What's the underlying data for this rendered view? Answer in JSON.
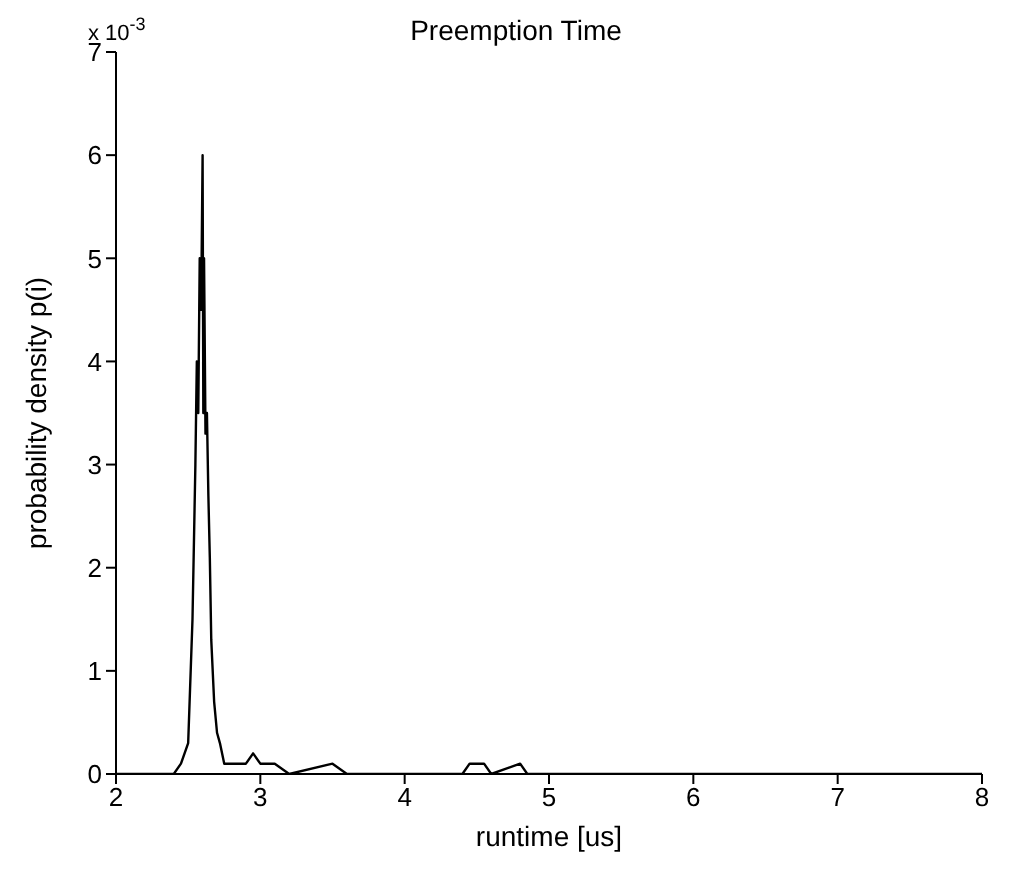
{
  "chart_data": {
    "type": "line",
    "title": "Preemption Time",
    "xlabel": "runtime [us]",
    "ylabel": "probability density p(i)",
    "annotations": [
      "x 10$^{-3}$"
    ],
    "series": [
      {
        "color": "#000000",
        "x": [
          2.0,
          2.4,
          2.45,
          2.5,
          2.53,
          2.55,
          2.56,
          2.57,
          2.58,
          2.59,
          2.6,
          2.605,
          2.61,
          2.62,
          2.63,
          2.64,
          2.65,
          2.66,
          2.68,
          2.7,
          2.72,
          2.75,
          2.8,
          2.9,
          2.95,
          3.0,
          3.1,
          3.2,
          3.5,
          3.6,
          4.4,
          4.45,
          4.5,
          4.55,
          4.6,
          4.8,
          4.85,
          8.0
        ],
        "values": [
          0,
          0,
          0.1,
          0.3,
          1.5,
          3.0,
          4.0,
          3.5,
          5.0,
          4.5,
          6.0,
          3.5,
          5.0,
          3.3,
          3.5,
          2.7,
          2.1,
          1.3,
          0.7,
          0.4,
          0.3,
          0.1,
          0.1,
          0.1,
          0.2,
          0.1,
          0.1,
          0,
          0.1,
          0,
          0,
          0.1,
          0.1,
          0.1,
          0,
          0.1,
          0,
          0
        ]
      }
    ],
    "xlim": [
      2,
      8
    ],
    "xticks": [
      2,
      3,
      4,
      5,
      6,
      7,
      8
    ],
    "ylim": [
      0,
      7
    ],
    "yticks": [
      0,
      1,
      2,
      3,
      4,
      5,
      6,
      7
    ],
    "marker": "none",
    "line_style": "solid"
  }
}
